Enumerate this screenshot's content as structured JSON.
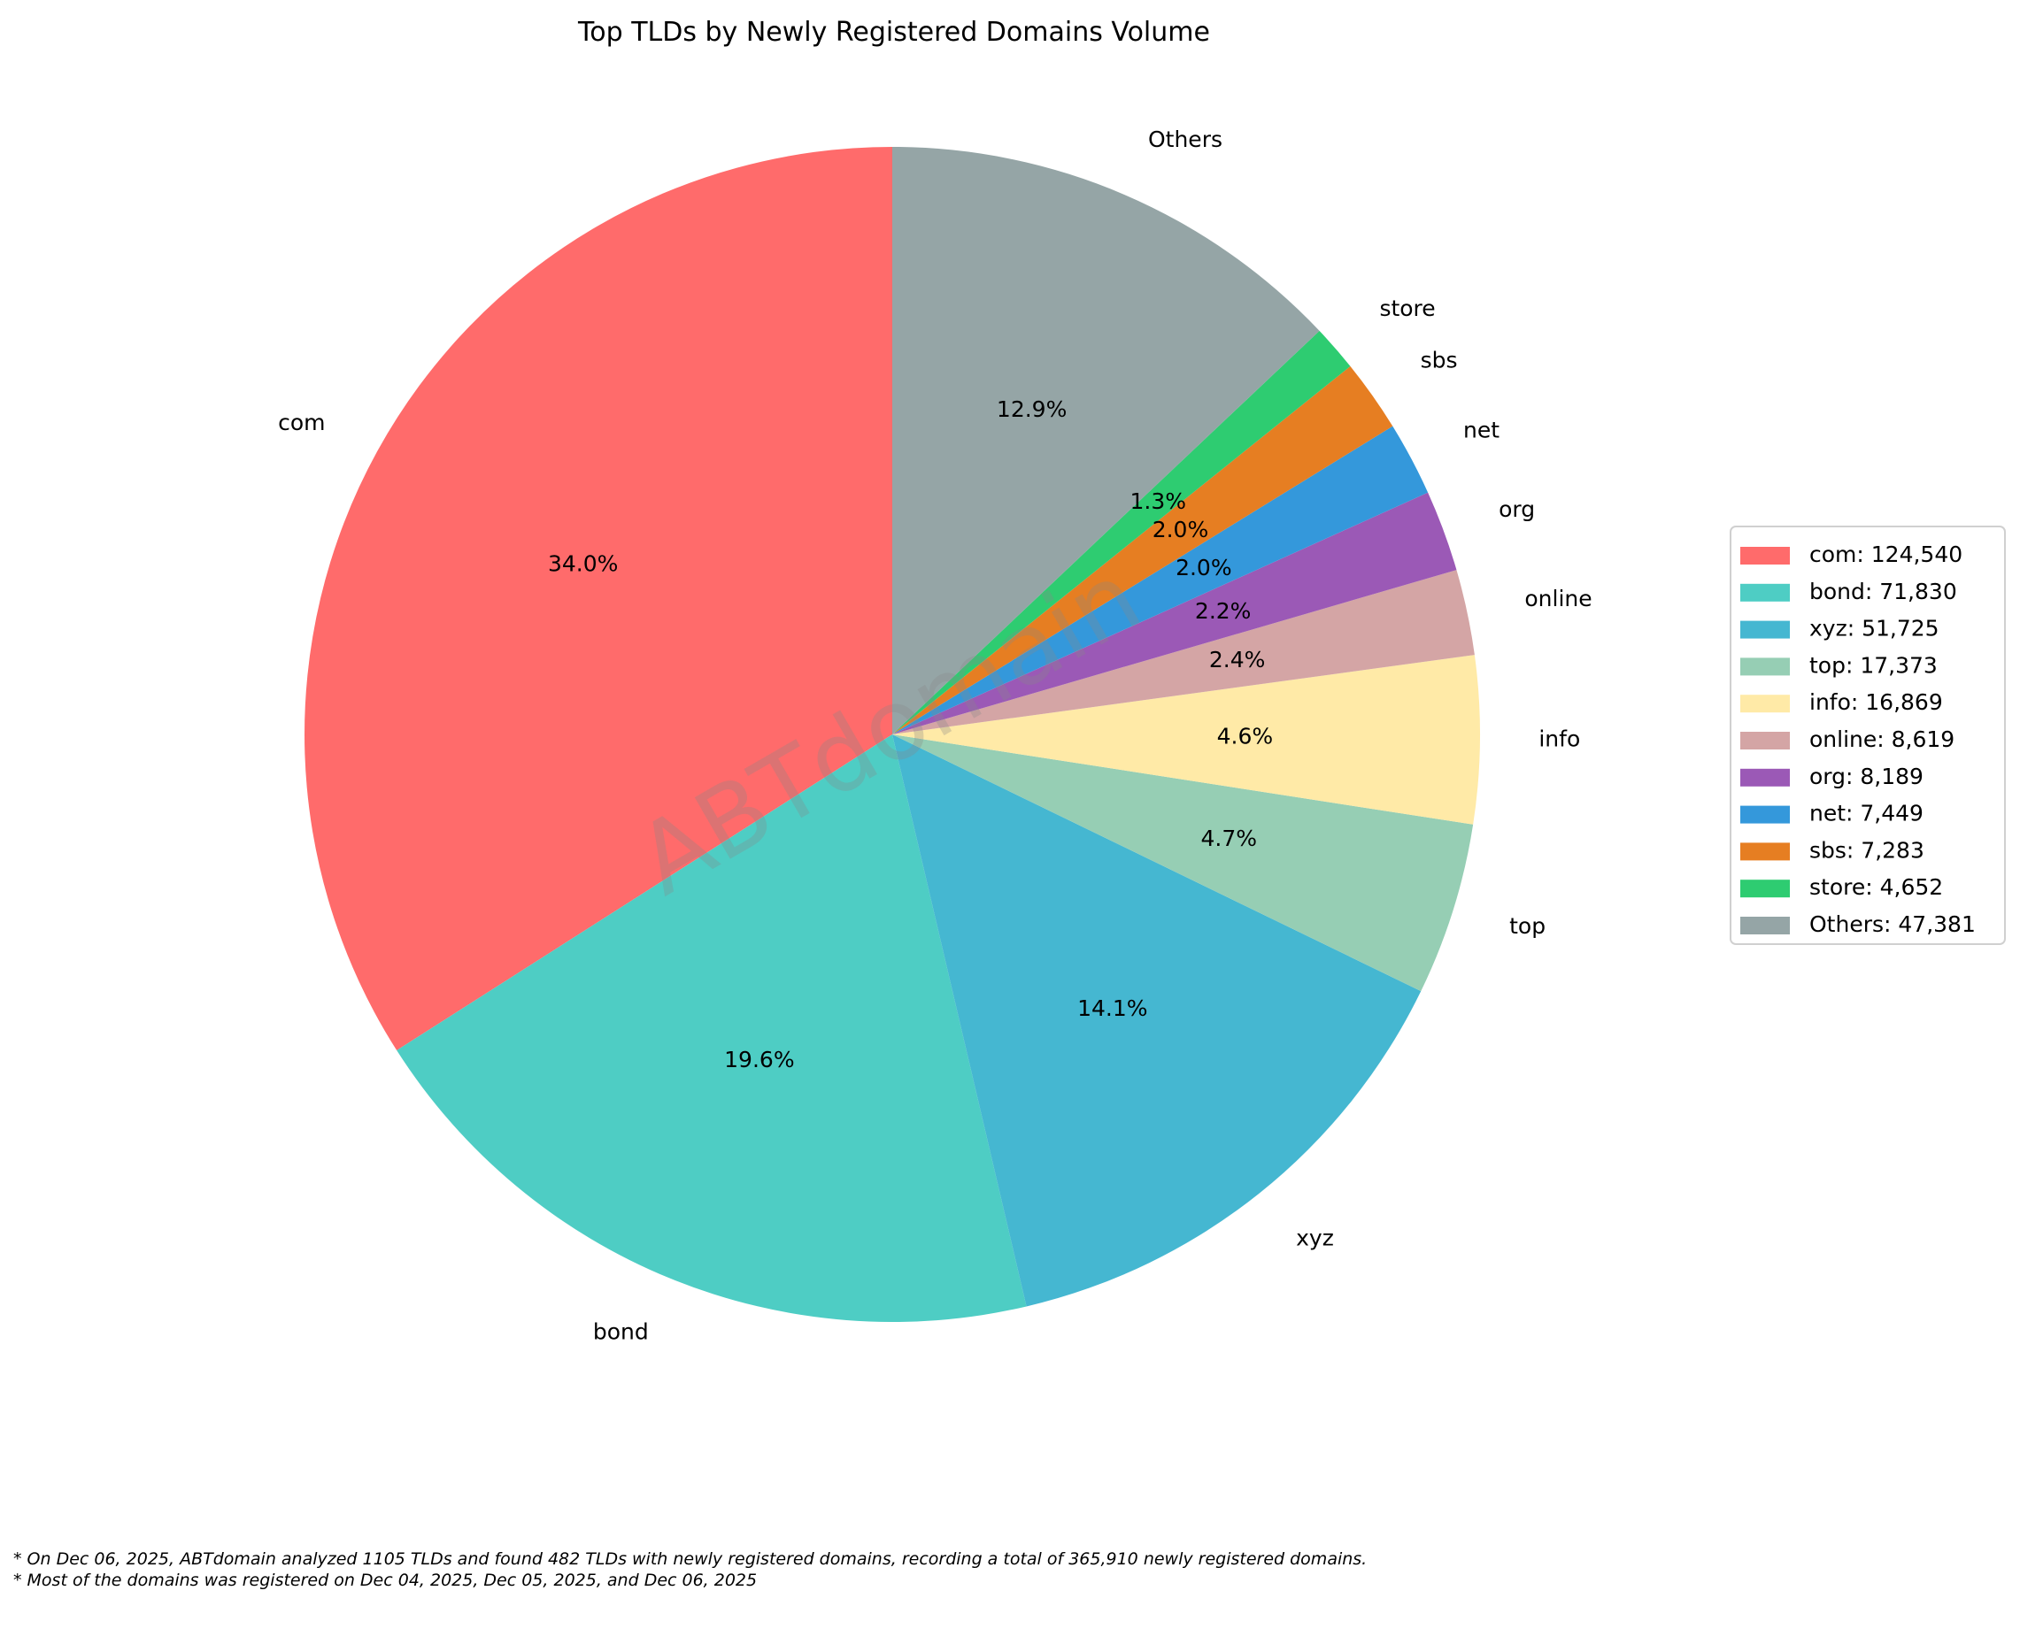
{
  "chart_data": {
    "type": "pie",
    "title": "Top TLDs by Newly Registered Domains Volume",
    "start_angle_deg": 90,
    "direction": "counterclockwise",
    "legend_position": "right",
    "watermark": "ABTdomain",
    "slices": [
      {
        "label": "com",
        "value": 124540,
        "pct": "34.0%",
        "legend": "com: 124,540",
        "color": "#ff6b6b"
      },
      {
        "label": "bond",
        "value": 71830,
        "pct": "19.6%",
        "legend": "bond: 71,830",
        "color": "#4ecdc4"
      },
      {
        "label": "xyz",
        "value": 51725,
        "pct": "14.1%",
        "legend": "xyz: 51,725",
        "color": "#45b7d1"
      },
      {
        "label": "top",
        "value": 17373,
        "pct": "4.7%",
        "legend": "top: 17,373",
        "color": "#96ceb4"
      },
      {
        "label": "info",
        "value": 16869,
        "pct": "4.6%",
        "legend": "info: 16,869",
        "color": "#ffeaa7"
      },
      {
        "label": "online",
        "value": 8619,
        "pct": "2.4%",
        "legend": "online: 8,619",
        "color": "#d4a5a5"
      },
      {
        "label": "org",
        "value": 8189,
        "pct": "2.2%",
        "legend": "org: 8,189",
        "color": "#9b59b6"
      },
      {
        "label": "net",
        "value": 7449,
        "pct": "2.0%",
        "legend": "net: 7,449",
        "color": "#3498db"
      },
      {
        "label": "sbs",
        "value": 7283,
        "pct": "2.0%",
        "legend": "sbs: 7,283",
        "color": "#e67e22"
      },
      {
        "label": "store",
        "value": 4652,
        "pct": "1.3%",
        "legend": "store: 4,652",
        "color": "#2ecc71"
      },
      {
        "label": "Others",
        "value": 47381,
        "pct": "12.9%",
        "legend": "Others: 47,381",
        "color": "#95a5a6"
      }
    ]
  },
  "footnotes": [
    "* On Dec 06, 2025, ABTdomain analyzed 1105 TLDs and found 482 TLDs with newly registered domains, recording a total of 365,910 newly registered domains.",
    "* Most of the domains was registered on Dec 04, 2025, Dec 05, 2025, and Dec 06, 2025"
  ]
}
